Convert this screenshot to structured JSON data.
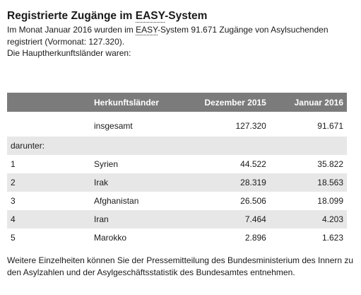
{
  "heading": {
    "before": "Registrierte Zugänge im ",
    "abbr": "EASY",
    "after": "-System"
  },
  "intro": {
    "line1_before": "Im Monat Januar 2016 wurden im ",
    "line1_abbr": "EASY",
    "line1_after": "-System 91.671 Zugänge von Asylsuchenden registriert (Vormonat: 127.320).",
    "line2": "Die Hauptherkunftsländer waren:"
  },
  "table": {
    "headers": {
      "rank": "",
      "country": "Herkunftsländer",
      "prev": "Dezember 2015",
      "curr": "Januar 2016"
    },
    "total": {
      "label": "insgesamt",
      "prev": "127.320",
      "curr": "91.671"
    },
    "subheading": "darunter:",
    "rows": [
      {
        "rank": "1",
        "country": "Syrien",
        "prev": "44.522",
        "curr": "35.822"
      },
      {
        "rank": "2",
        "country": "Irak",
        "prev": "28.319",
        "curr": "18.563"
      },
      {
        "rank": "3",
        "country": "Afghanistan",
        "prev": "26.506",
        "curr": "18.099"
      },
      {
        "rank": "4",
        "country": "Iran",
        "prev": "7.464",
        "curr": "4.203"
      },
      {
        "rank": "5",
        "country": "Marokko",
        "prev": "2.896",
        "curr": "1.623"
      }
    ]
  },
  "footer": "Weitere Einzelheiten können Sie der Pressemitteilung des Bundesministerium des Innern zu den Asylzahlen und der Asylgeschäftsstatistik des Bundesamtes entnehmen.",
  "colors": {
    "header_bg": "#7b7b7b",
    "header_text": "#ffffff",
    "row_shade": "#e7e7e7"
  }
}
